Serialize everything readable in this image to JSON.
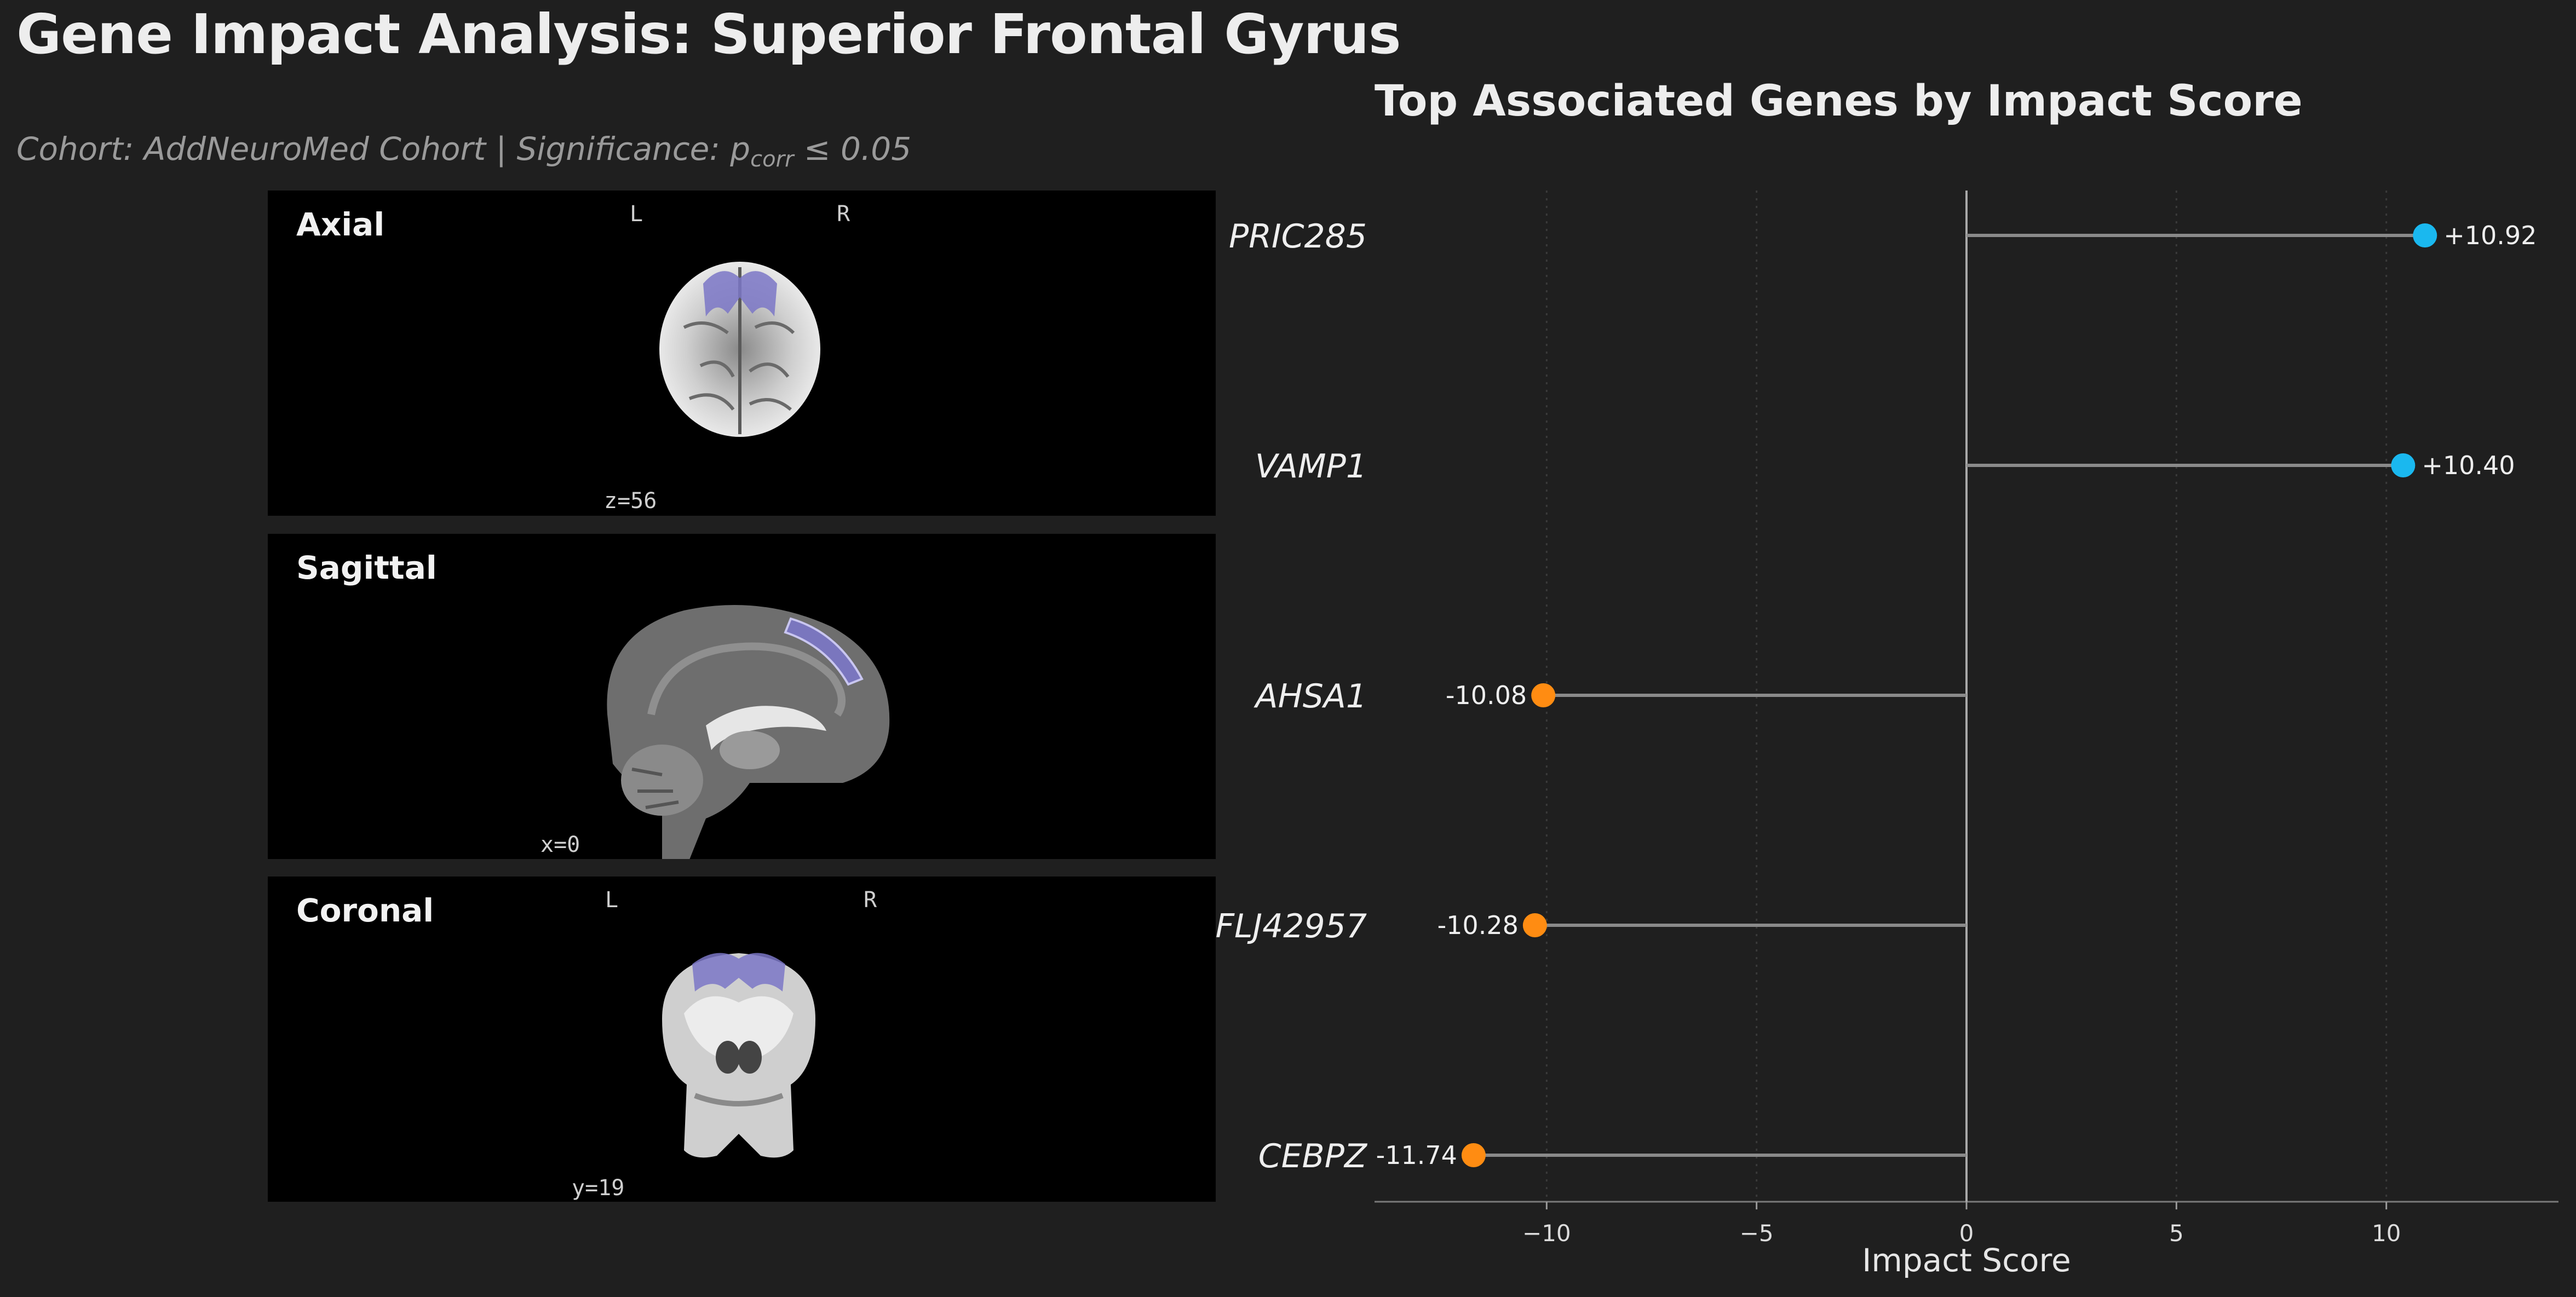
{
  "title": "Gene Impact Analysis: Superior Frontal Gyrus",
  "subtitle": {
    "prefix": "Cohort: AddNeuroMed Cohort | Significance: p",
    "sub": "corr",
    "suffix": " ≤ 0.05"
  },
  "brain_panels": [
    {
      "label": "Axial",
      "left_marker": "L",
      "right_marker": "R",
      "coordinate": "z=56"
    },
    {
      "label": "Sagittal",
      "coordinate": "x=0"
    },
    {
      "label": "Coronal",
      "left_marker": "L",
      "right_marker": "R",
      "coordinate": "y=19"
    }
  ],
  "colors": {
    "background": "#1f1f1f",
    "positive": "#1ab8ef",
    "negative": "#ff8c12",
    "region_highlight": "#7b77c7",
    "stem": "#8a8a8a",
    "zero_line": "#a8a8a8"
  },
  "chart_data": {
    "type": "lollipop",
    "title": "Top Associated Genes by Impact Score",
    "xlabel": "Impact Score",
    "ylabel": "",
    "xlim": [
      -14.1,
      14.1
    ],
    "xticks": [
      -10,
      -5,
      0,
      5,
      10
    ],
    "xtick_labels": [
      "−10",
      "−5",
      "0",
      "5",
      "10"
    ],
    "grid": "vertical dotted",
    "categories": [
      "PRIC285",
      "VAMP1",
      "AHSA1",
      "FLJ42957",
      "CEBPZ"
    ],
    "values": [
      10.92,
      10.4,
      -10.08,
      -10.28,
      -11.74
    ],
    "value_labels": [
      "+10.92",
      "+10.40",
      "-10.08",
      "-10.28",
      "-11.74"
    ]
  }
}
